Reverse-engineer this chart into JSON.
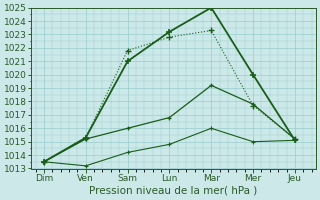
{
  "days": [
    "Dim",
    "Ven",
    "Sam",
    "Lun",
    "Mar",
    "Mer",
    "Jeu"
  ],
  "x_positions": [
    0,
    1,
    2,
    3,
    4,
    5,
    6
  ],
  "line1": [
    1013.5,
    1015.3,
    1021.0,
    1023.2,
    1025.0,
    1020.0,
    1015.1
  ],
  "line2": [
    1013.5,
    1015.3,
    1021.8,
    1022.8,
    1023.3,
    1017.7,
    1015.2
  ],
  "line3": [
    1013.5,
    1015.2,
    1016.0,
    1016.8,
    1019.2,
    1017.8,
    1015.2
  ],
  "line4": [
    1013.5,
    1013.2,
    1014.2,
    1014.8,
    1016.0,
    1015.0,
    1015.1
  ],
  "ylim_min": 1013,
  "ylim_max": 1025,
  "yticks": [
    1013,
    1014,
    1015,
    1016,
    1017,
    1018,
    1019,
    1020,
    1021,
    1022,
    1023,
    1024,
    1025
  ],
  "bg_color": "#cce8e8",
  "grid_color": "#99cccc",
  "line_color": "#1a5c1a",
  "xlabel": "Pression niveau de la mer( hPa )",
  "label_fontsize": 7.5,
  "tick_fontsize": 6.5
}
